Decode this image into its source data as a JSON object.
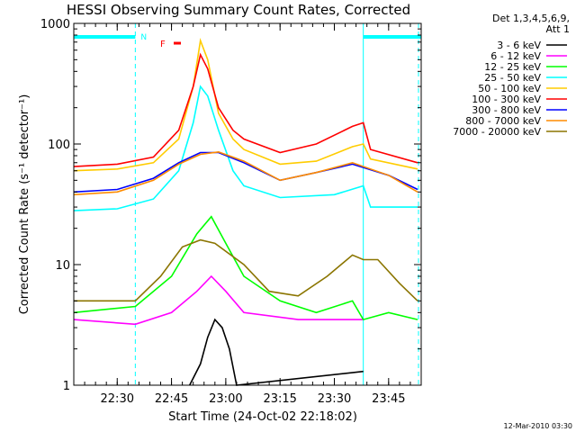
{
  "chart_data": {
    "type": "line",
    "title": "HESSI Observing Summary Count Rates, Corrected",
    "xlabel": "Start Time (24-Oct-02 22:18:02)",
    "ylabel": "Corrected Count Rate (s⁻¹ detector⁻¹)",
    "y_scale": "log",
    "ylim": [
      1,
      1000
    ],
    "xlim_minutes_after_2218": [
      0,
      96
    ],
    "x_ticks": [
      "22:30",
      "22:45",
      "23:00",
      "23:15",
      "23:30",
      "23:45"
    ],
    "y_ticks": [
      "1",
      "10",
      "100",
      "1000"
    ],
    "legend_header": [
      "Det 1,3,4,5,6,9,",
      "Att 1"
    ],
    "flag_labels": {
      "night": "N",
      "flare": "F"
    },
    "stamp": "12-Mar-2010 03:30",
    "grid": false,
    "series": [
      {
        "name": "3 - 6 keV",
        "color": "#000000",
        "x": [
          "22:50",
          "22:53",
          "22:55",
          "22:57",
          "22:59",
          "23:01",
          "23:03",
          "23:38"
        ],
        "values": [
          1,
          1.5,
          2.5,
          3.5,
          3,
          2,
          1,
          1.3
        ]
      },
      {
        "name": "6 - 12 keV",
        "color": "#ff00ff",
        "x": [
          "22:18",
          "22:35",
          "22:45",
          "22:52",
          "22:56",
          "23:00",
          "23:05",
          "23:20",
          "23:35",
          "23:38"
        ],
        "values": [
          3.5,
          3.2,
          4,
          6,
          8,
          6,
          4,
          3.5,
          3.5,
          3.5
        ]
      },
      {
        "name": "12 - 25 keV",
        "color": "#00ff00",
        "x": [
          "22:18",
          "22:35",
          "22:45",
          "22:52",
          "22:56",
          "23:00",
          "23:05",
          "23:15",
          "23:25",
          "23:35",
          "23:38",
          "23:45",
          "23:53"
        ],
        "values": [
          4,
          4.5,
          8,
          18,
          25,
          15,
          8,
          5,
          4,
          5,
          3.5,
          4,
          3.5
        ]
      },
      {
        "name": "25 - 50 keV",
        "color": "#00ffff",
        "x": [
          "22:18",
          "22:30",
          "22:40",
          "22:47",
          "22:51",
          "22:53",
          "22:55",
          "22:58",
          "23:02",
          "23:05",
          "23:15",
          "23:30",
          "23:38",
          "23:40",
          "23:53"
        ],
        "values": [
          28,
          29,
          35,
          60,
          150,
          300,
          250,
          130,
          60,
          45,
          36,
          38,
          45,
          30,
          30
        ]
      },
      {
        "name": "50 - 100 keV",
        "color": "#ffcc00",
        "x": [
          "22:18",
          "22:30",
          "22:40",
          "22:47",
          "22:51",
          "22:53",
          "22:55",
          "22:58",
          "23:02",
          "23:05",
          "23:15",
          "23:25",
          "23:35",
          "23:38",
          "23:40",
          "23:53"
        ],
        "values": [
          60,
          62,
          70,
          110,
          300,
          720,
          500,
          180,
          110,
          90,
          68,
          72,
          95,
          100,
          75,
          62
        ]
      },
      {
        "name": "100 - 300 keV",
        "color": "#ff0000",
        "x": [
          "22:18",
          "22:30",
          "22:40",
          "22:47",
          "22:51",
          "22:53",
          "22:55",
          "22:58",
          "23:02",
          "23:05",
          "23:15",
          "23:25",
          "23:35",
          "23:38",
          "23:40",
          "23:53"
        ],
        "values": [
          65,
          68,
          78,
          130,
          300,
          550,
          420,
          200,
          130,
          110,
          85,
          100,
          140,
          150,
          90,
          70
        ]
      },
      {
        "name": "300 - 800 keV",
        "color": "#0000ff",
        "x": [
          "22:18",
          "22:30",
          "22:40",
          "22:47",
          "22:53",
          "22:58",
          "23:05",
          "23:15",
          "23:25",
          "23:35",
          "23:45",
          "23:53"
        ],
        "values": [
          40,
          42,
          52,
          70,
          85,
          85,
          70,
          50,
          58,
          68,
          55,
          42
        ]
      },
      {
        "name": "800 - 7000 keV",
        "color": "#ff8c00",
        "x": [
          "22:18",
          "22:30",
          "22:40",
          "22:47",
          "22:53",
          "22:58",
          "23:05",
          "23:15",
          "23:25",
          "23:35",
          "23:45",
          "23:53"
        ],
        "values": [
          38,
          40,
          50,
          68,
          82,
          86,
          72,
          50,
          58,
          70,
          55,
          40
        ]
      },
      {
        "name": "7000 - 20000 keV",
        "color": "#8b7500",
        "x": [
          "22:18",
          "22:35",
          "22:42",
          "22:48",
          "22:53",
          "22:57",
          "23:05",
          "23:12",
          "23:20",
          "23:28",
          "23:35",
          "23:38",
          "23:42",
          "23:48",
          "23:53"
        ],
        "values": [
          5,
          5,
          8,
          14,
          16,
          15,
          10,
          6,
          5.5,
          8,
          12,
          11,
          11,
          7,
          5
        ]
      }
    ]
  }
}
